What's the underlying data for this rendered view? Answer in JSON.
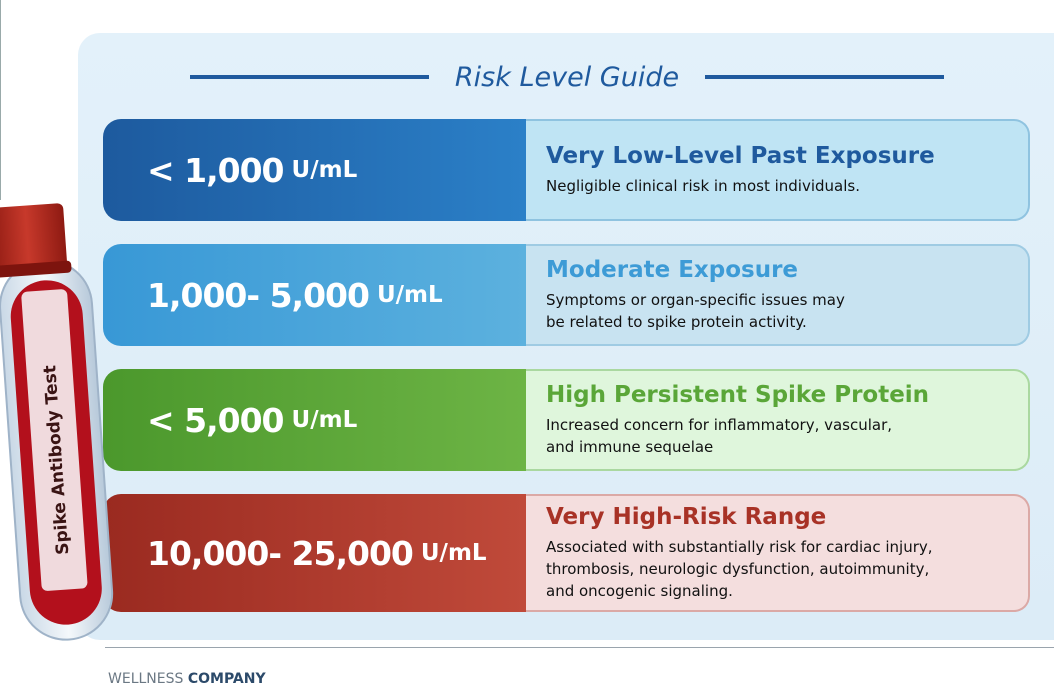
{
  "title": "Risk Level Guide",
  "tube_label": "Spike Antibody Test",
  "rows": [
    {
      "range": "< 1,000",
      "unit": "U/mL",
      "heading": "Very Low-Level Past Exposure",
      "description": [
        "Negligible clinical risk in most individuals."
      ]
    },
    {
      "range": "1,000- 5,000",
      "unit": "U/mL",
      "heading": "Moderate Exposure",
      "description": [
        "Symptoms or organ-specific issues may",
        "be related to spike protein activity."
      ]
    },
    {
      "range": "< 5,000",
      "unit": "U/mL",
      "heading": "High Persistent Spike Protein",
      "description": [
        "Increased concern for inflammatory, vascular,",
        "and immune sequelae"
      ]
    },
    {
      "range": "10,000- 25,000",
      "unit": "U/mL",
      "heading": "Very High-Risk Range",
      "description": [
        "Associated with substantially risk for cardiac injury,",
        "thrombosis, neurologic dysfunction, autoimmunity,",
        "and oncogenic signaling."
      ]
    }
  ],
  "footer": {
    "brand_light": "WELLNESS",
    "brand_bold": "COMPANY"
  }
}
